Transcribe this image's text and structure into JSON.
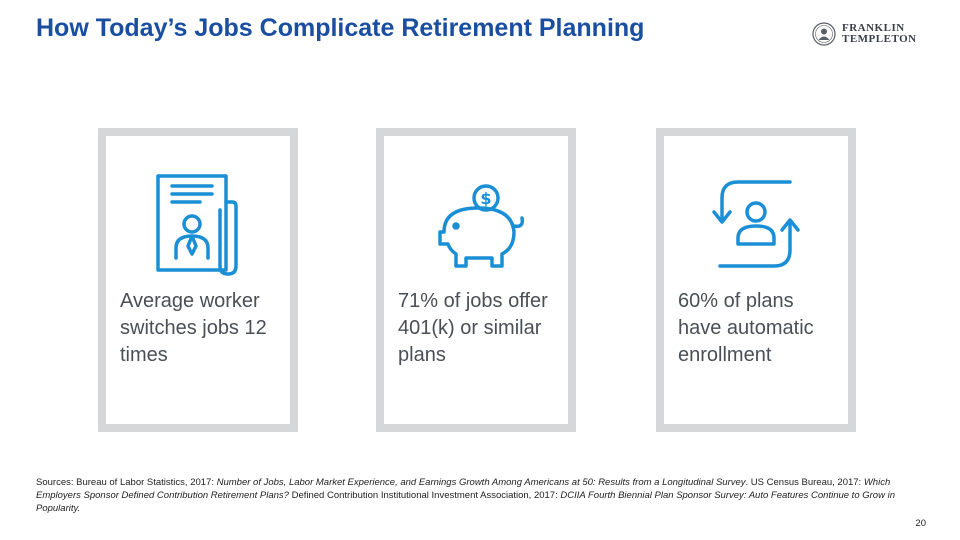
{
  "title": "How Today’s Jobs Complicate Retirement Planning",
  "logo": {
    "line1": "FRANKLIN",
    "line2": "TEMPLETON",
    "icon": "seal-portrait-icon"
  },
  "accent_color": "#1a8fd6",
  "title_color": "#1a4ea1",
  "cards": [
    {
      "icon": "resume-document-icon",
      "text": "Average worker switches jobs 12 times"
    },
    {
      "icon": "piggy-bank-dollar-icon",
      "text": "71% of jobs offer 401(k) or similar plans"
    },
    {
      "icon": "user-cycle-arrows-icon",
      "text": "60% of plans have automatic enrollment"
    }
  ],
  "sources": [
    {
      "text": "Sources: Bureau of Labor Statistics, 2017: ",
      "italic": false
    },
    {
      "text": "Number of Jobs, Labor Market Experience, and Earnings Growth Among Americans at 50: Results from a Longitudinal Survey",
      "italic": true
    },
    {
      "text": ". US Census Bureau, 2017: ",
      "italic": false
    },
    {
      "text": "Which Employers Sponsor Defined Contribution Retirement Plans?",
      "italic": true
    },
    {
      "text": " Defined Contribution Institutional Investment Association, 2017: ",
      "italic": false
    },
    {
      "text": "DCIIA Fourth Biennial Plan Sponsor Survey: Auto Features Continue to Grow in Popularity.",
      "italic": true
    }
  ],
  "page_number": "20"
}
